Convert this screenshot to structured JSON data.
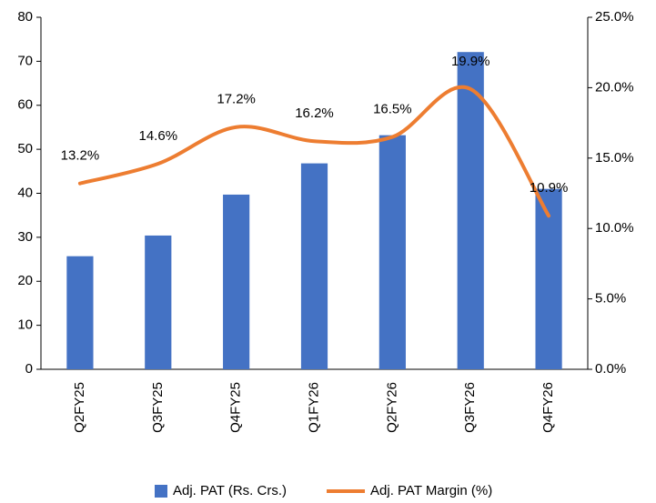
{
  "chart_data": {
    "type": "bar-line",
    "categories": [
      "Q2FY25",
      "Q3FY25",
      "Q4FY25",
      "Q1FY26",
      "Q2FY26",
      "Q3FY26",
      "Q4FY26"
    ],
    "series": [
      {
        "name": "Adj. PAT (Rs. Crs.)",
        "type": "bar",
        "color": "#4472c4",
        "values": [
          25.7,
          30.4,
          39.7,
          46.8,
          53.2,
          72.1,
          41
        ]
      },
      {
        "name": "Adj. PAT Margin (%)",
        "type": "line",
        "axis": "y2",
        "color": "#ed7d31",
        "values": [
          13.2,
          14.6,
          17.2,
          16.2,
          16.5,
          19.9,
          10.9
        ],
        "value_labels": [
          "13.2%",
          "14.6%",
          "17.2%",
          "16.2%",
          "16.5%",
          "19.9%",
          "10.9%"
        ]
      }
    ],
    "ylim": [
      0,
      80
    ],
    "yticks": [
      0,
      10,
      20,
      30,
      40,
      50,
      60,
      70,
      80
    ],
    "y2lim": [
      0,
      25
    ],
    "y2ticks": [
      {
        "value": 0,
        "label": "0.0%"
      },
      {
        "value": 5,
        "label": "5.0%"
      },
      {
        "value": 10,
        "label": "10.0%"
      },
      {
        "value": 15,
        "label": "15.0%"
      },
      {
        "value": 20,
        "label": "20.0%"
      },
      {
        "value": 25,
        "label": "25.0%"
      }
    ],
    "grid": false,
    "legend": "bottom"
  }
}
